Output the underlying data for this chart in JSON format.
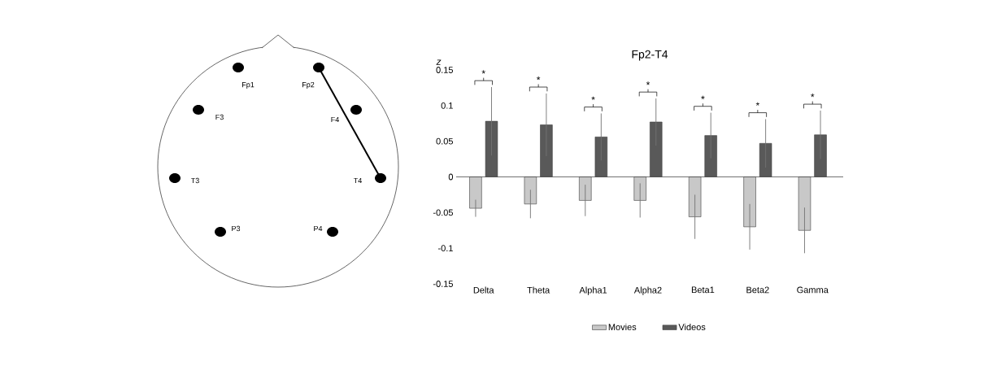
{
  "chart_data": [
    {
      "type": "other",
      "annotations": [
        "Fp1",
        "Fp2",
        "F3",
        "F4",
        "T3",
        "T4",
        "P3",
        "P4"
      ]
    },
    {
      "type": "bar",
      "title": "Fp2-T4",
      "ylabel": "z",
      "categories": [
        "Delta",
        "Theta",
        "Alpha1",
        "Alpha2",
        "Beta1",
        "Beta2",
        "Gamma"
      ],
      "series": [
        {
          "name": "Movies",
          "color": "#c8c8c8",
          "values": [
            -0.044,
            -0.038,
            -0.033,
            -0.033,
            -0.056,
            -0.07,
            -0.075
          ],
          "errors": [
            0.012,
            0.02,
            0.022,
            0.024,
            0.031,
            0.032,
            0.032
          ]
        },
        {
          "name": "Videos",
          "color": "#595959",
          "values": [
            0.078,
            0.073,
            0.056,
            0.077,
            0.058,
            0.047,
            0.059
          ],
          "errors": [
            0.048,
            0.044,
            0.033,
            0.033,
            0.032,
            0.034,
            0.034
          ]
        }
      ],
      "ylim": [
        -0.15,
        0.15
      ],
      "yticks": [
        -0.15,
        -0.1,
        -0.05,
        0,
        0.05,
        0.1,
        0.15
      ],
      "legend": "bottom",
      "annotations": [
        "*",
        "*",
        "*",
        "*",
        "*",
        "*",
        "*"
      ]
    }
  ]
}
